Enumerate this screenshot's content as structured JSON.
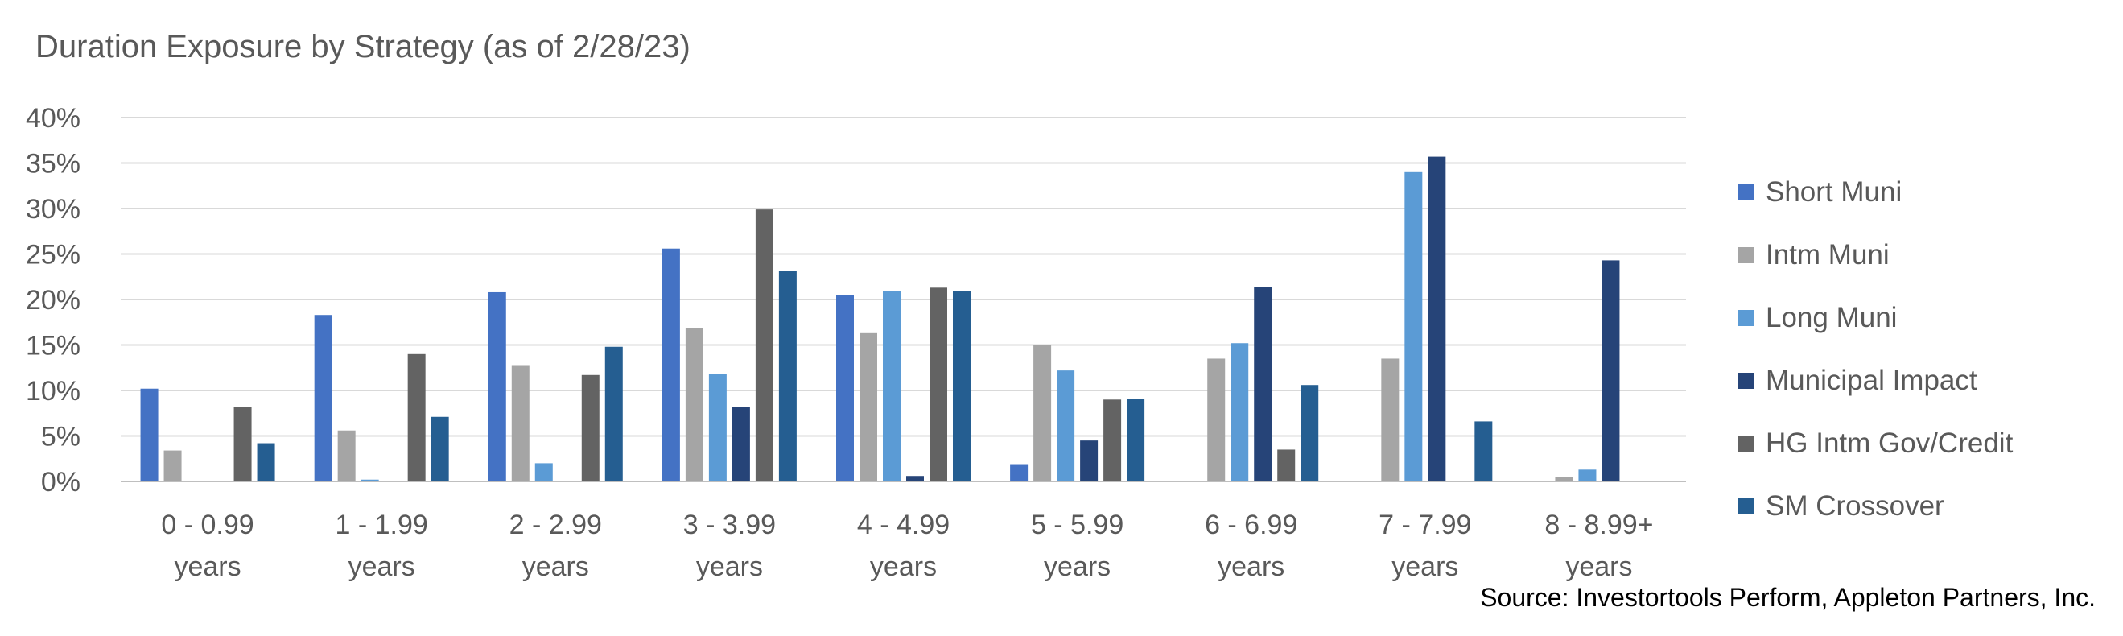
{
  "chart_data": {
    "type": "bar",
    "title": "Duration Exposure by Strategy (as of 2/28/23)",
    "xlabel": "",
    "ylabel": "",
    "ylim": [
      0,
      40
    ],
    "y_ticks": [
      0,
      5,
      10,
      15,
      20,
      25,
      30,
      35,
      40
    ],
    "y_tick_labels": [
      "0%",
      "5%",
      "10%",
      "15%",
      "20%",
      "25%",
      "30%",
      "35%",
      "40%"
    ],
    "grid": true,
    "legend_position": "right",
    "categories": [
      [
        "0 - 0.99",
        "years"
      ],
      [
        "1 - 1.99",
        "years"
      ],
      [
        "2 - 2.99",
        "years"
      ],
      [
        "3 - 3.99",
        "years"
      ],
      [
        "4 - 4.99",
        "years"
      ],
      [
        "5 - 5.99",
        "years"
      ],
      [
        "6 - 6.99",
        "years"
      ],
      [
        "7 - 7.99",
        "years"
      ],
      [
        "8 - 8.99+",
        "years"
      ]
    ],
    "series": [
      {
        "name": "Short Muni",
        "color": "#4472C4",
        "values": [
          10.2,
          18.3,
          20.8,
          25.6,
          20.5,
          1.9,
          0,
          0,
          0
        ]
      },
      {
        "name": "Intm Muni",
        "color": "#A5A5A5",
        "values": [
          3.4,
          5.6,
          12.7,
          16.9,
          16.3,
          15.0,
          13.5,
          13.5,
          0.5
        ]
      },
      {
        "name": "Long Muni",
        "color": "#5B9BD5",
        "values": [
          0,
          0.2,
          2.0,
          11.8,
          20.9,
          12.2,
          15.2,
          34.0,
          1.3
        ]
      },
      {
        "name": "Municipal Impact",
        "color": "#264478",
        "values": [
          0,
          0,
          0,
          8.2,
          0.6,
          4.5,
          21.4,
          35.7,
          24.3
        ]
      },
      {
        "name": "HG Intm Gov/Credit",
        "color": "#636363",
        "values": [
          8.2,
          14.0,
          11.7,
          29.9,
          21.3,
          9.0,
          3.5,
          0,
          0
        ]
      },
      {
        "name": "SM Crossover",
        "color": "#255E91",
        "values": [
          4.2,
          7.1,
          14.8,
          23.1,
          20.9,
          9.1,
          10.6,
          6.6,
          0
        ]
      }
    ]
  },
  "source": "Source:  Investortools Perform, Appleton Partners, Inc."
}
